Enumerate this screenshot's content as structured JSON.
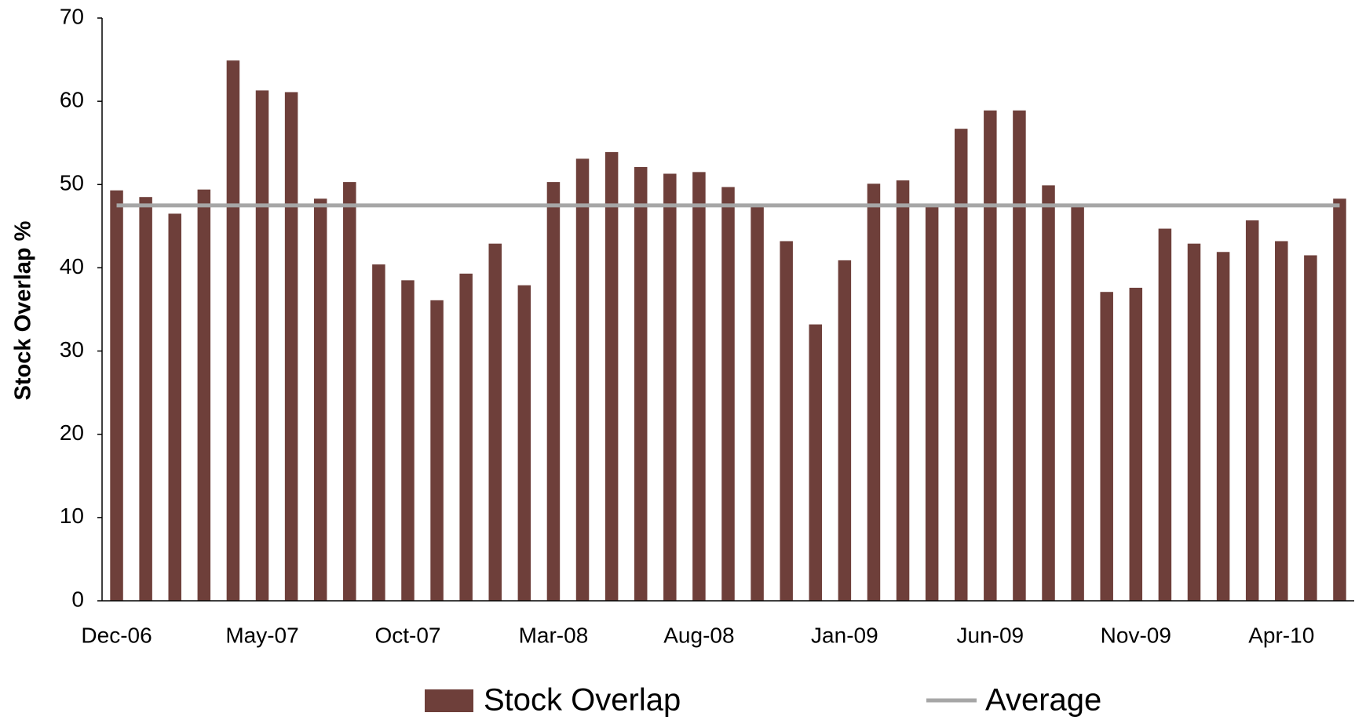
{
  "chart_data": {
    "type": "bar",
    "ylabel": "Stock Overlap %",
    "categories": [
      "Dec-06",
      null,
      null,
      null,
      null,
      "May-07",
      null,
      null,
      null,
      null,
      "Oct-07",
      null,
      null,
      null,
      null,
      "Mar-08",
      null,
      null,
      null,
      null,
      "Aug-08",
      null,
      null,
      null,
      null,
      "Jan-09",
      null,
      null,
      null,
      null,
      "Jun-09",
      null,
      null,
      null,
      null,
      "Nov-09",
      null,
      null,
      null,
      null,
      "Apr-10",
      null,
      null
    ],
    "series": [
      {
        "name": "Stock Overlap",
        "color": "#6e3f3a",
        "values": [
          49.3,
          48.5,
          46.5,
          49.4,
          64.9,
          61.3,
          61.1,
          48.3,
          50.3,
          40.4,
          38.5,
          36.1,
          39.3,
          42.9,
          37.9,
          50.3,
          53.1,
          53.9,
          52.1,
          51.3,
          51.5,
          49.7,
          47.6,
          43.2,
          33.2,
          40.9,
          50.1,
          50.5,
          47.7,
          56.7,
          58.9,
          58.9,
          49.9,
          47.6,
          37.1,
          37.6,
          44.7,
          42.9,
          41.9,
          45.7,
          43.2,
          41.5,
          48.3
        ]
      },
      {
        "name": "Average",
        "type": "line",
        "color": "#a6a6a6",
        "values": [
          47.5,
          47.5,
          47.5,
          47.5,
          47.5,
          47.5,
          47.5,
          47.5,
          47.5,
          47.5,
          47.5,
          47.5,
          47.5,
          47.5,
          47.5,
          47.5,
          47.5,
          47.5,
          47.5,
          47.5,
          47.5,
          47.5,
          47.5,
          47.5,
          47.5,
          47.5,
          47.5,
          47.5,
          47.5,
          47.5,
          47.5,
          47.5,
          47.5,
          47.5,
          47.5,
          47.5,
          47.5,
          47.5,
          47.5,
          47.5,
          47.5,
          47.5,
          47.5
        ]
      }
    ],
    "ylim": [
      0,
      70
    ],
    "yticks": [
      0,
      10,
      20,
      30,
      40,
      50,
      60,
      70
    ],
    "grid": false,
    "legend": "bottom"
  }
}
